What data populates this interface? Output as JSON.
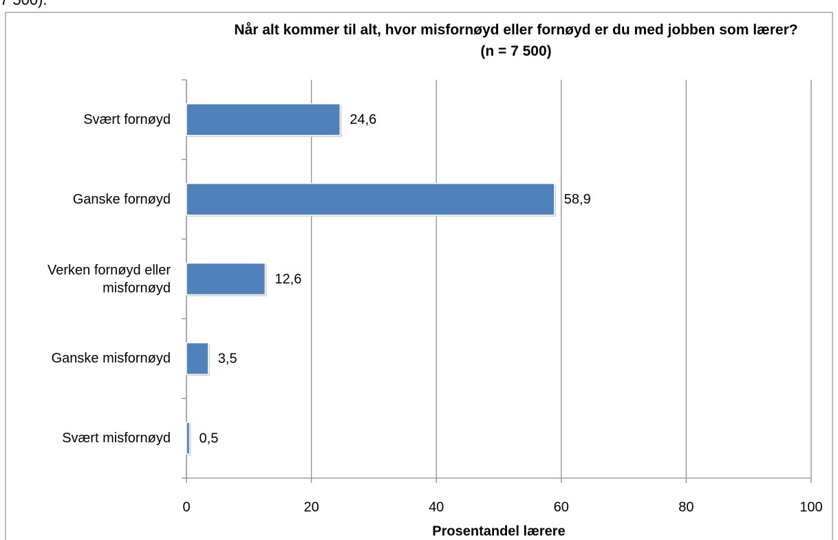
{
  "preceding_text": "7 500).",
  "chart_data": {
    "type": "bar",
    "orientation": "horizontal",
    "title": "Når alt kommer til alt, hvor misfornøyd eller fornøyd er du med jobben som lærer?",
    "subtitle": "(n = 7 500)",
    "x_label": "Prosentandel lærere",
    "categories": [
      "Svært fornøyd",
      "Ganske fornøyd",
      "Verken fornøyd eller misfornøyd",
      "Ganske misfornøyd",
      "Svært misfornøyd"
    ],
    "values": [
      24.6,
      58.9,
      12.6,
      3.5,
      0.5
    ],
    "value_labels": [
      "24,6",
      "58,9",
      "12,6",
      "3,5",
      "0,5"
    ],
    "color": "#4f81bd",
    "xlim": [
      0,
      100
    ],
    "xticks": [
      0,
      20,
      40,
      60,
      80,
      100
    ],
    "grid": true
  }
}
